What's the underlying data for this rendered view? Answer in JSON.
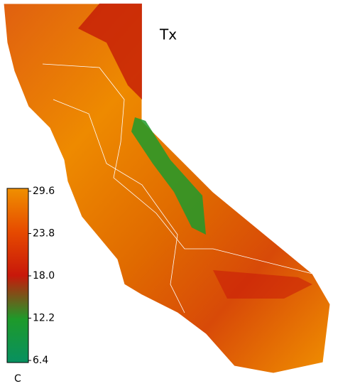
{
  "map": {
    "title": "Tx",
    "colorbar": {
      "range": [
        6.4,
        29.6
      ],
      "ticks": [
        29.6,
        23.8,
        {
          "value": 18.0,
          "label": "18.0"
        },
        12.2,
        6.4
      ],
      "colors": [
        "#089060",
        "#1e9a2a",
        "#c8180a",
        "#e64a00",
        "#f09000"
      ],
      "unit": "C"
    }
  }
}
